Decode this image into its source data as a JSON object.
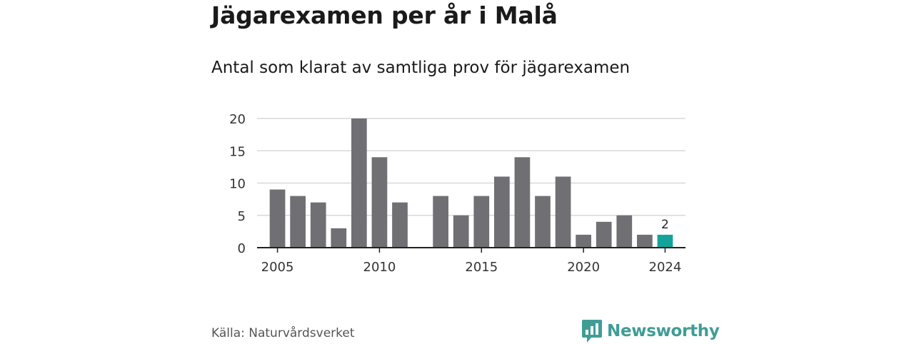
{
  "title": "Jägarexamen per år i Malå",
  "subtitle": "Antal som klarat av samtliga prov för jägarexamen",
  "source": "Källa: Naturvårdsverket",
  "brand": {
    "name": "Newsworthy",
    "icon": "newsworthy-logo-icon",
    "color": "#3f9d96"
  },
  "chart_data": {
    "type": "bar",
    "x": [
      2005,
      2006,
      2007,
      2008,
      2009,
      2010,
      2011,
      2012,
      2013,
      2014,
      2015,
      2016,
      2017,
      2018,
      2019,
      2020,
      2021,
      2022,
      2023,
      2024
    ],
    "values": [
      9,
      8,
      7,
      3,
      20,
      14,
      7,
      null,
      8,
      5,
      8,
      11,
      14,
      8,
      11,
      2,
      4,
      5,
      2,
      2
    ],
    "x_ticks": [
      "2005",
      "2010",
      "2015",
      "2020",
      "2024"
    ],
    "y_ticks": [
      "0",
      "5",
      "10",
      "15",
      "20"
    ],
    "ylim": [
      0,
      20
    ],
    "xlim": [
      2004,
      2025
    ],
    "grid": true,
    "highlight": {
      "x": 2024,
      "label": "2",
      "color": "#14a39a"
    },
    "bar_color": "#707074"
  }
}
